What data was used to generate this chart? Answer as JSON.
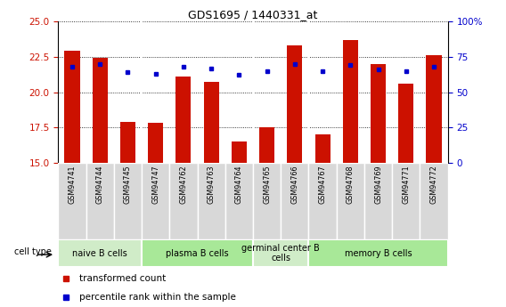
{
  "title": "GDS1695 / 1440331_at",
  "samples": [
    "GSM94741",
    "GSM94744",
    "GSM94745",
    "GSM94747",
    "GSM94762",
    "GSM94763",
    "GSM94764",
    "GSM94765",
    "GSM94766",
    "GSM94767",
    "GSM94768",
    "GSM94769",
    "GSM94771",
    "GSM94772"
  ],
  "transformed_count": [
    22.9,
    22.4,
    17.9,
    17.8,
    21.1,
    20.7,
    16.5,
    17.5,
    23.3,
    17.0,
    23.7,
    22.0,
    20.6,
    22.6
  ],
  "percentile_rank": [
    68,
    70,
    64,
    63,
    68,
    67,
    62,
    65,
    70,
    65,
    69,
    66,
    65,
    68
  ],
  "ylim_left": [
    15,
    25
  ],
  "ylim_right": [
    0,
    100
  ],
  "yticks_left": [
    15,
    17.5,
    20,
    22.5,
    25
  ],
  "yticks_right": [
    0,
    25,
    50,
    75,
    100
  ],
  "bar_color": "#cc1100",
  "dot_color": "#0000cc",
  "cell_groups": [
    {
      "label": "naive B cells",
      "start": 0,
      "end": 2,
      "color": "#d0ecc8"
    },
    {
      "label": "plasma B cells",
      "start": 3,
      "end": 6,
      "color": "#a8e898"
    },
    {
      "label": "germinal center B\ncells",
      "start": 7,
      "end": 8,
      "color": "#d0ecc8"
    },
    {
      "label": "memory B cells",
      "start": 9,
      "end": 13,
      "color": "#a8e898"
    }
  ],
  "grid_color": "black",
  "tick_color_left": "#cc1100",
  "tick_color_right": "#0000cc",
  "sample_bg_color": "#d8d8d8"
}
